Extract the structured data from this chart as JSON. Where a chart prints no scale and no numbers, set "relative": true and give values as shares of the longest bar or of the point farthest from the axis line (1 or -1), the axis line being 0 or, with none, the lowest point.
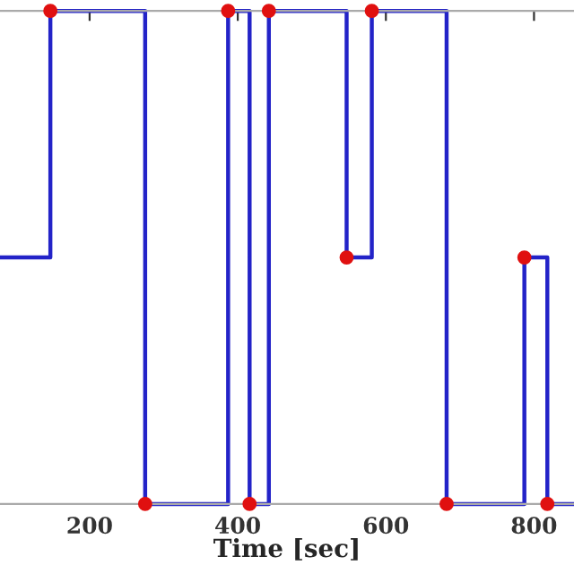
{
  "chart_data": {
    "type": "step",
    "xlabel": "Time [sec]",
    "relative": true,
    "xlim": [
      79,
      854
    ],
    "xticks": [
      200,
      400,
      600,
      800
    ],
    "grid": false,
    "legend": false,
    "series": [
      {
        "color": "#2323c8",
        "x": [
          79,
          147,
          275,
          387,
          416,
          442,
          547,
          581,
          682,
          787,
          818,
          854
        ],
        "values": [
          0.5,
          1,
          0,
          1,
          0,
          1,
          0.5,
          1,
          0,
          0.5,
          0,
          0
        ]
      },
      {
        "type": "scatter",
        "marker": "circle",
        "color": "#e01010",
        "x": [
          147,
          275,
          387,
          416,
          442,
          547,
          581,
          682,
          787,
          818
        ],
        "values": [
          1,
          0,
          1,
          0,
          1,
          0.5,
          1,
          0,
          0.5,
          0
        ]
      }
    ]
  }
}
